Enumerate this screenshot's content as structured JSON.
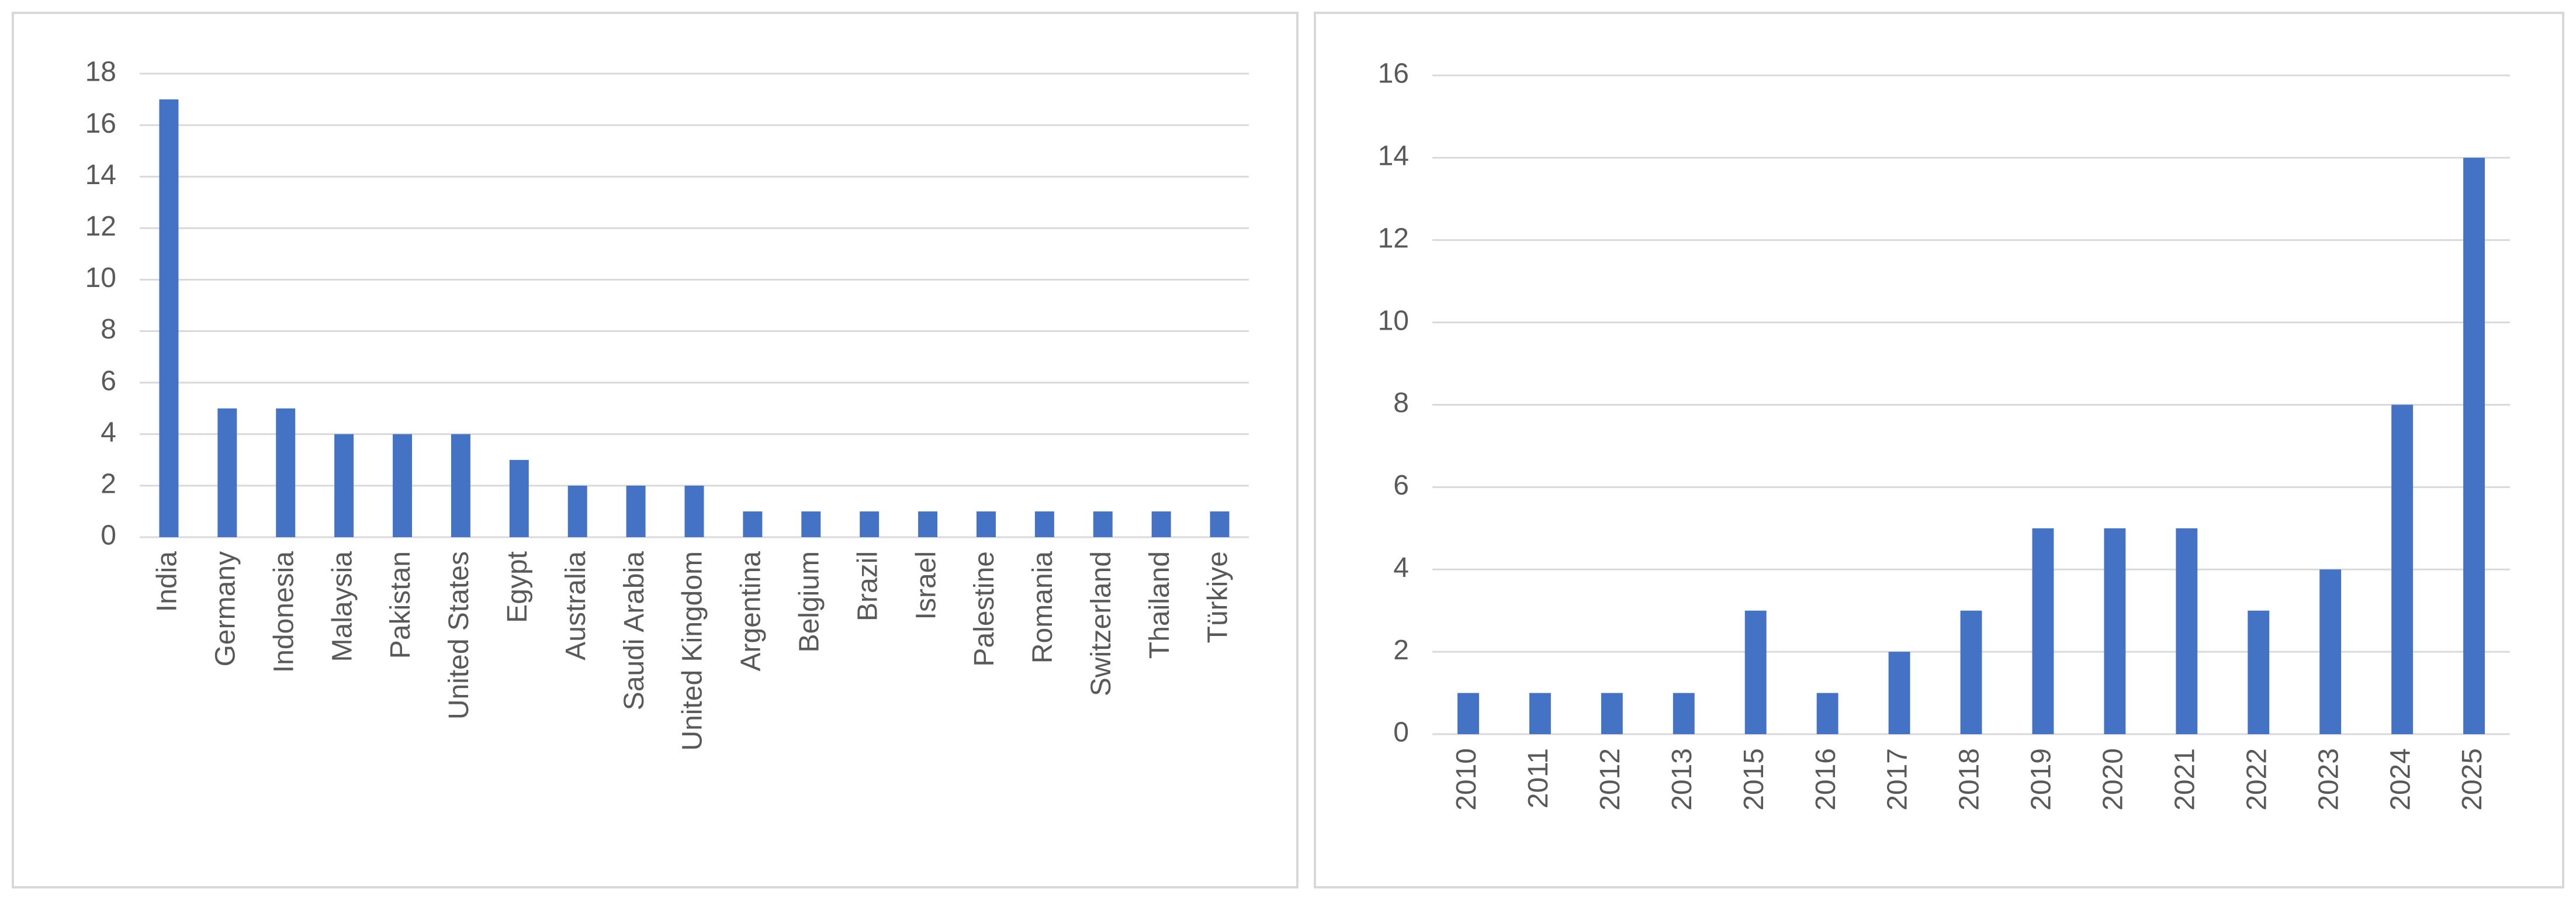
{
  "chart_data": [
    {
      "type": "bar",
      "categories": [
        "India",
        "Germany",
        "Indonesia",
        "Malaysia",
        "Pakistan",
        "United States",
        "Egypt",
        "Australia",
        "Saudi Arabia",
        "United Kingdom",
        "Argentina",
        "Belgium",
        "Brazil",
        "Israel",
        "Palestine",
        "Romania",
        "Switzerland",
        "Thailand",
        "Türkiye"
      ],
      "values": [
        17,
        5,
        5,
        4,
        4,
        4,
        3,
        2,
        2,
        2,
        1,
        1,
        1,
        1,
        1,
        1,
        1,
        1,
        1
      ],
      "color": "#4472c4",
      "ylim": [
        0,
        18
      ],
      "yticks": [
        0,
        2,
        4,
        6,
        8,
        10,
        12,
        14,
        16,
        18
      ],
      "grid": true
    },
    {
      "type": "bar",
      "categories": [
        "2010",
        "2011",
        "2012",
        "2013",
        "2015",
        "2016",
        "2017",
        "2018",
        "2019",
        "2020",
        "2021",
        "2022",
        "2023",
        "2024",
        "2025"
      ],
      "values": [
        1,
        1,
        1,
        1,
        3,
        1,
        2,
        3,
        5,
        5,
        5,
        3,
        4,
        8,
        14
      ],
      "color": "#4472c4",
      "ylim": [
        0,
        16
      ],
      "yticks": [
        0,
        2,
        4,
        6,
        8,
        10,
        12,
        14,
        16
      ],
      "grid": true
    }
  ]
}
